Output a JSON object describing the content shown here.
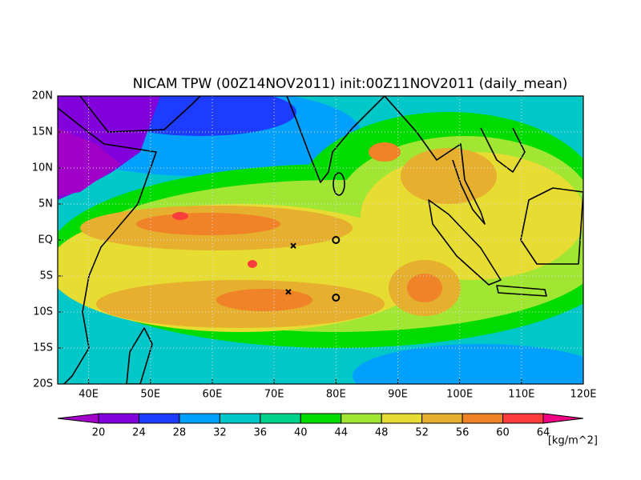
{
  "map": {
    "title": "NICAM TPW (00Z14NOV2011) init:00Z11NOV2011 (daily_mean)",
    "xlim": [
      35,
      120
    ],
    "ylim": [
      -20,
      20
    ],
    "xticks": [
      {
        "value": 40,
        "label": "40E"
      },
      {
        "value": 50,
        "label": "50E"
      },
      {
        "value": 60,
        "label": "60E"
      },
      {
        "value": 70,
        "label": "70E"
      },
      {
        "value": 80,
        "label": "80E"
      },
      {
        "value": 90,
        "label": "90E"
      },
      {
        "value": 100,
        "label": "100E"
      },
      {
        "value": 110,
        "label": "110E"
      },
      {
        "value": 120,
        "label": "120E"
      }
    ],
    "yticks": [
      {
        "value": -20,
        "label": "20S"
      },
      {
        "value": -15,
        "label": "15S"
      },
      {
        "value": -10,
        "label": "10S"
      },
      {
        "value": -5,
        "label": "5S"
      },
      {
        "value": 0,
        "label": "EQ"
      },
      {
        "value": 5,
        "label": "5N"
      },
      {
        "value": 10,
        "label": "10N"
      },
      {
        "value": 15,
        "label": "15N"
      },
      {
        "value": 20,
        "label": "20N"
      }
    ],
    "grid": true,
    "markers": [
      {
        "symbol": "x",
        "lon": 73.1,
        "lat": -0.8
      },
      {
        "symbol": "o",
        "lon": 80,
        "lat": 0
      },
      {
        "symbol": "x",
        "lon": 72.3,
        "lat": -7.2
      },
      {
        "symbol": "o",
        "lon": 80,
        "lat": -8
      }
    ],
    "colorbar": {
      "levels": [
        20,
        24,
        28,
        32,
        36,
        40,
        44,
        48,
        52,
        56,
        60,
        64
      ],
      "colors": [
        "#a000c8",
        "#8200dc",
        "#1e3cff",
        "#00a0ff",
        "#00c8c8",
        "#00d28c",
        "#00dc00",
        "#a0e632",
        "#e6dc32",
        "#e6af2d",
        "#f08228",
        "#fa3c3c",
        "#f00082"
      ],
      "unit": "[kg/m^2]"
    }
  }
}
